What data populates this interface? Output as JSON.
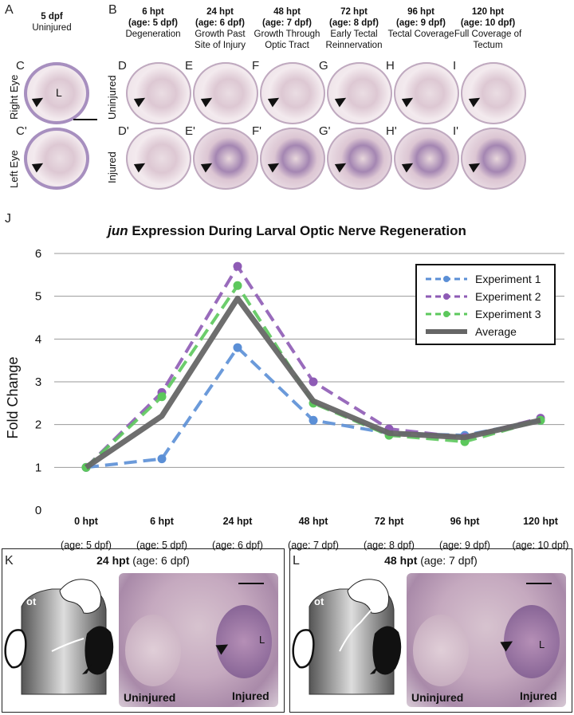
{
  "panel_letters": {
    "A": "A",
    "B": "B",
    "J": "J",
    "K": "K",
    "L": "L"
  },
  "col_A": {
    "time": "5 dpf",
    "label": "Uninjured"
  },
  "columns": [
    {
      "time": "6 hpt",
      "age": "(age: 5 dpf)",
      "label": "Degeneration"
    },
    {
      "time": "24 hpt",
      "age": "(age: 6 dpf)",
      "label": "Growth Past Site of Injury"
    },
    {
      "time": "48 hpt",
      "age": "(age: 7 dpf)",
      "label": "Growth Through Optic Tract"
    },
    {
      "time": "72 hpt",
      "age": "(age: 8 dpf)",
      "label": "Early Tectal Reinnervation"
    },
    {
      "time": "96 hpt",
      "age": "(age: 9 dpf)",
      "label": "Tectal Coverage"
    },
    {
      "time": "120 hpt",
      "age": "(age: 10 dpf)",
      "label": "Full Coverage of Tectum"
    }
  ],
  "row_labels": {
    "right_eye": "Right Eye",
    "left_eye": "Left Eye",
    "uninjured": "Uninjured",
    "injured": "Injured"
  },
  "eye_top_labels": [
    "C",
    "D",
    "E",
    "F",
    "G",
    "H",
    "I"
  ],
  "eye_bottom_labels": [
    "C'",
    "D'",
    "E'",
    "F'",
    "G'",
    "H'",
    "I'"
  ],
  "lens_letter": "L",
  "chart_data": {
    "type": "line",
    "title_italic": "jun",
    "title_rest": " Expression During Larval Optic Nerve Regeneration",
    "ylabel": "Fold Change",
    "ylim": [
      0,
      6
    ],
    "yticks": [
      "0",
      "1",
      "2",
      "3",
      "4",
      "5",
      "6"
    ],
    "categories": [
      {
        "time": "0 hpt",
        "age": "(age: 5 dpf)"
      },
      {
        "time": "6 hpt",
        "age": "(age: 5 dpf)"
      },
      {
        "time": "24 hpt",
        "age": "(age: 6 dpf)"
      },
      {
        "time": "48 hpt",
        "age": "(age: 7 dpf)"
      },
      {
        "time": "72 hpt",
        "age": "(age: 8 dpf)"
      },
      {
        "time": "96 hpt",
        "age": "(age: 9 dpf)"
      },
      {
        "time": "120 hpt",
        "age": "(age: 10 dpf)"
      }
    ],
    "series": [
      {
        "name": "Experiment 1",
        "values": [
          1.0,
          1.2,
          3.8,
          2.1,
          1.8,
          1.75,
          2.1
        ],
        "color": "#5b8fd6",
        "dashed": true
      },
      {
        "name": "Experiment 2",
        "values": [
          1.0,
          2.75,
          5.7,
          3.0,
          1.9,
          1.7,
          2.15
        ],
        "color": "#8e5bb5",
        "dashed": true
      },
      {
        "name": "Experiment 3",
        "values": [
          1.0,
          2.65,
          5.25,
          2.5,
          1.75,
          1.6,
          2.1
        ],
        "color": "#5cc85c",
        "dashed": true
      },
      {
        "name": "Average",
        "values": [
          1.0,
          2.2,
          4.95,
          2.55,
          1.8,
          1.7,
          2.1
        ],
        "color": "#666666",
        "dashed": false
      }
    ],
    "grid": true,
    "legend_position": "top-right"
  },
  "panel_K": {
    "time": "24 hpt",
    "age": " (age: 6 dpf)",
    "ot": "ot",
    "uninjured": "Uninjured",
    "injured": "Injured",
    "lens": "L"
  },
  "panel_L": {
    "time": "48 hpt",
    "age": " (age: 7 dpf)",
    "ot": "ot",
    "uninjured": "Uninjured",
    "injured": "Injured",
    "lens": "L"
  }
}
